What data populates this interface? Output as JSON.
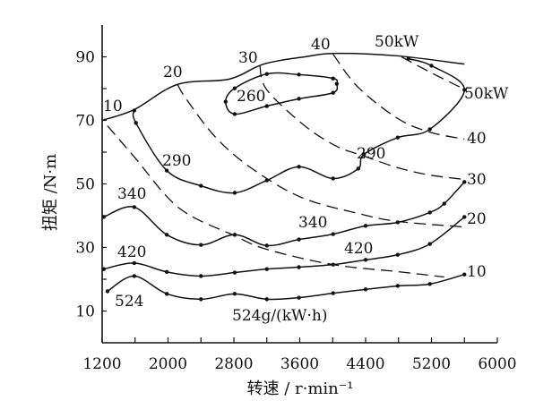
{
  "chart_data": {
    "type": "line",
    "xlabel": "转速 / r·min⁻¹",
    "ylabel": "扭矩 /N·m",
    "xlim": [
      1200,
      6000
    ],
    "ylim": [
      0,
      100
    ],
    "xticks": [
      "1200",
      "2000",
      "2800",
      "3600",
      "4400",
      "5200",
      "6000"
    ],
    "yticks": [
      "10",
      "30",
      "50",
      "70",
      "90"
    ],
    "grid": false,
    "full_load_curve": {
      "rpm": [
        1200,
        1590,
        2115,
        2745,
        3160,
        3660,
        4050,
        4790,
        5600
      ],
      "torque": [
        70,
        73.4,
        81.3,
        83.0,
        87.7,
        90,
        91.1,
        90.3,
        87.7
      ]
    },
    "bsfc_contours": [
      {
        "label": "260",
        "closed": true,
        "rpm": [
          2810,
          3200,
          3590,
          4005,
          4050,
          4005,
          3590,
          3200,
          2810,
          2700
        ],
        "torque": [
          72.0,
          74.5,
          76.8,
          78.7,
          81.5,
          83.2,
          84.4,
          84.6,
          80.1,
          75.9
        ]
      },
      {
        "label": "290",
        "closed": false,
        "rpm": [
          1590,
          1610,
          1985,
          2400,
          2810,
          3200,
          3590,
          4005,
          4310,
          4380,
          4790,
          5180,
          5600,
          5200,
          4920
        ],
        "torque": [
          73.1,
          69.2,
          54.2,
          49.4,
          47.2,
          51.1,
          55.4,
          51.7,
          54.8,
          59.3,
          64.6,
          67.2,
          79.6,
          87.2,
          89.4
        ]
      },
      {
        "label": "340",
        "closed": false,
        "rpm": [
          1220,
          1590,
          1985,
          2400,
          2810,
          3200,
          3590,
          4005,
          4400,
          4790,
          5180,
          5355,
          5600
        ],
        "torque": [
          39.6,
          42.7,
          34,
          30.8,
          34,
          30.6,
          32.5,
          34.2,
          36.8,
          37.9,
          41,
          43.8,
          50.6
        ]
      },
      {
        "label": "420",
        "closed": false,
        "rpm": [
          1220,
          1590,
          1985,
          2400,
          2810,
          3200,
          3590,
          4005,
          4400,
          4790,
          5180,
          5600
        ],
        "torque": [
          23.2,
          25.1,
          22.3,
          21,
          22.1,
          23.2,
          23.8,
          24.6,
          26.1,
          27.7,
          31.1,
          39.6
        ]
      },
      {
        "label": "524",
        "closed": false,
        "rpm": [
          1265,
          1590,
          1985,
          2400,
          2810,
          3200,
          3590,
          4005,
          4400,
          4790,
          5180,
          5600
        ],
        "torque": [
          16.2,
          21,
          15.4,
          13.7,
          15.4,
          13.7,
          14.2,
          15.6,
          16.8,
          17.9,
          18.5,
          21.5
        ]
      }
    ],
    "power_lines": [
      {
        "label": "10",
        "rpm": [
          1265,
          1590,
          2135,
          2810,
          3200,
          4005,
          4790,
          5355
        ],
        "torque": [
          68.3,
          58.5,
          42.4,
          33.7,
          29.4,
          24.6,
          22.4,
          20.7
        ]
      },
      {
        "label": "20",
        "rpm": [
          2115,
          2220,
          2570,
          3005,
          3615,
          4310,
          4790,
          5575
        ],
        "torque": [
          81.3,
          76.8,
          64.9,
          55.1,
          45.8,
          40.7,
          38.2,
          36.5
        ]
      },
      {
        "label": "30",
        "rpm": [
          3115,
          3200,
          3660,
          4050,
          4355,
          4790,
          5180,
          5600
        ],
        "torque": [
          87.2,
          79.6,
          68.3,
          61.8,
          59,
          55.1,
          52.8,
          51.4
        ]
      },
      {
        "label": "40",
        "rpm": [
          4005,
          4310,
          4790,
          5180,
          5600
        ],
        "torque": [
          90.8,
          80.4,
          70.6,
          66.3,
          64.1
        ]
      },
      {
        "label": "50kW",
        "rpm": [
          4835,
          5180,
          5575
        ],
        "torque": [
          90,
          85.2,
          80.1
        ]
      }
    ],
    "annotations": {
      "top_10": "10",
      "top_20": "20",
      "top_30": "30",
      "top_40": "40",
      "top_50": "50kW",
      "right_50": "50kW",
      "right_40": "40",
      "right_30": "30",
      "right_20": "20",
      "right_10": "10",
      "c260": "260",
      "c290_left": "290",
      "c290_right": "290",
      "c340_left": "340",
      "c340_mid": "340",
      "c420_left": "420",
      "c420_mid": "420",
      "c524_left": "524",
      "c524_unit": "524g/(kW·h)"
    }
  }
}
